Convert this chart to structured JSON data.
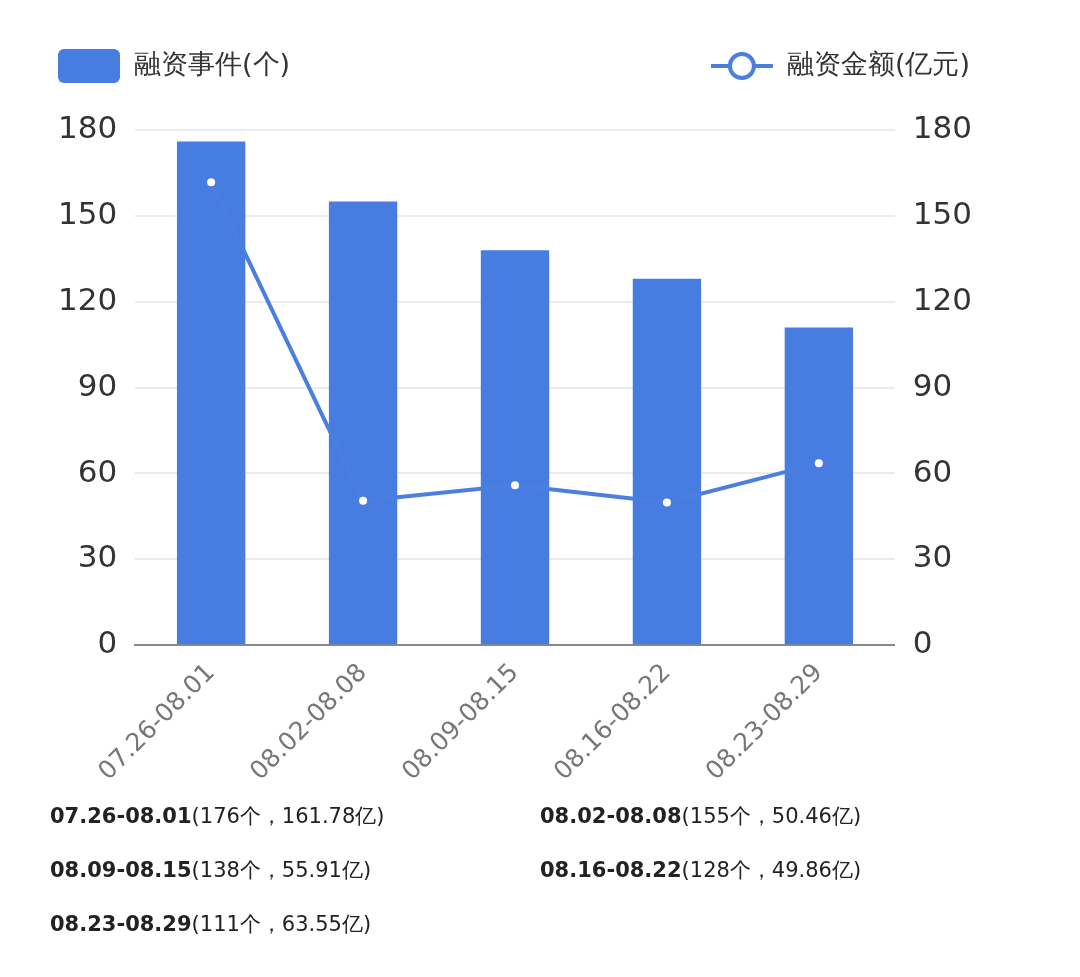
{
  "chart_data": {
    "type": "bar",
    "categories": [
      "07.26-08.01",
      "08.02-08.08",
      "08.09-08.15",
      "08.16-08.22",
      "08.23-08.29"
    ],
    "series": [
      {
        "name": "融资事件(个)",
        "color": "#477de0",
        "values": [
          176,
          155,
          138,
          128,
          111
        ]
      },
      {
        "name": "融资金额(亿元)",
        "type": "line",
        "axis": "y2",
        "color": "#4a7fdf",
        "values": [
          161.78,
          50.46,
          55.91,
          49.86,
          63.55
        ]
      }
    ],
    "annotations": [
      "07.26-08.01(176个，161.78亿)",
      "08.02-08.08(155个，50.46亿)",
      "08.09-08.15(138个，55.91亿)",
      "08.16-08.22(128个，49.86亿)",
      "08.23-08.29(111个，63.55亿)"
    ],
    "ylim": [
      0,
      180
    ],
    "yticks": [
      0,
      30,
      60,
      90,
      120,
      150,
      180
    ],
    "y2lim": [
      0,
      180
    ],
    "y2ticks": [
      0,
      30,
      60,
      90,
      120,
      150,
      180
    ],
    "grid": "y",
    "legend": "top",
    "marker": "circle",
    "line_style": "solid"
  }
}
